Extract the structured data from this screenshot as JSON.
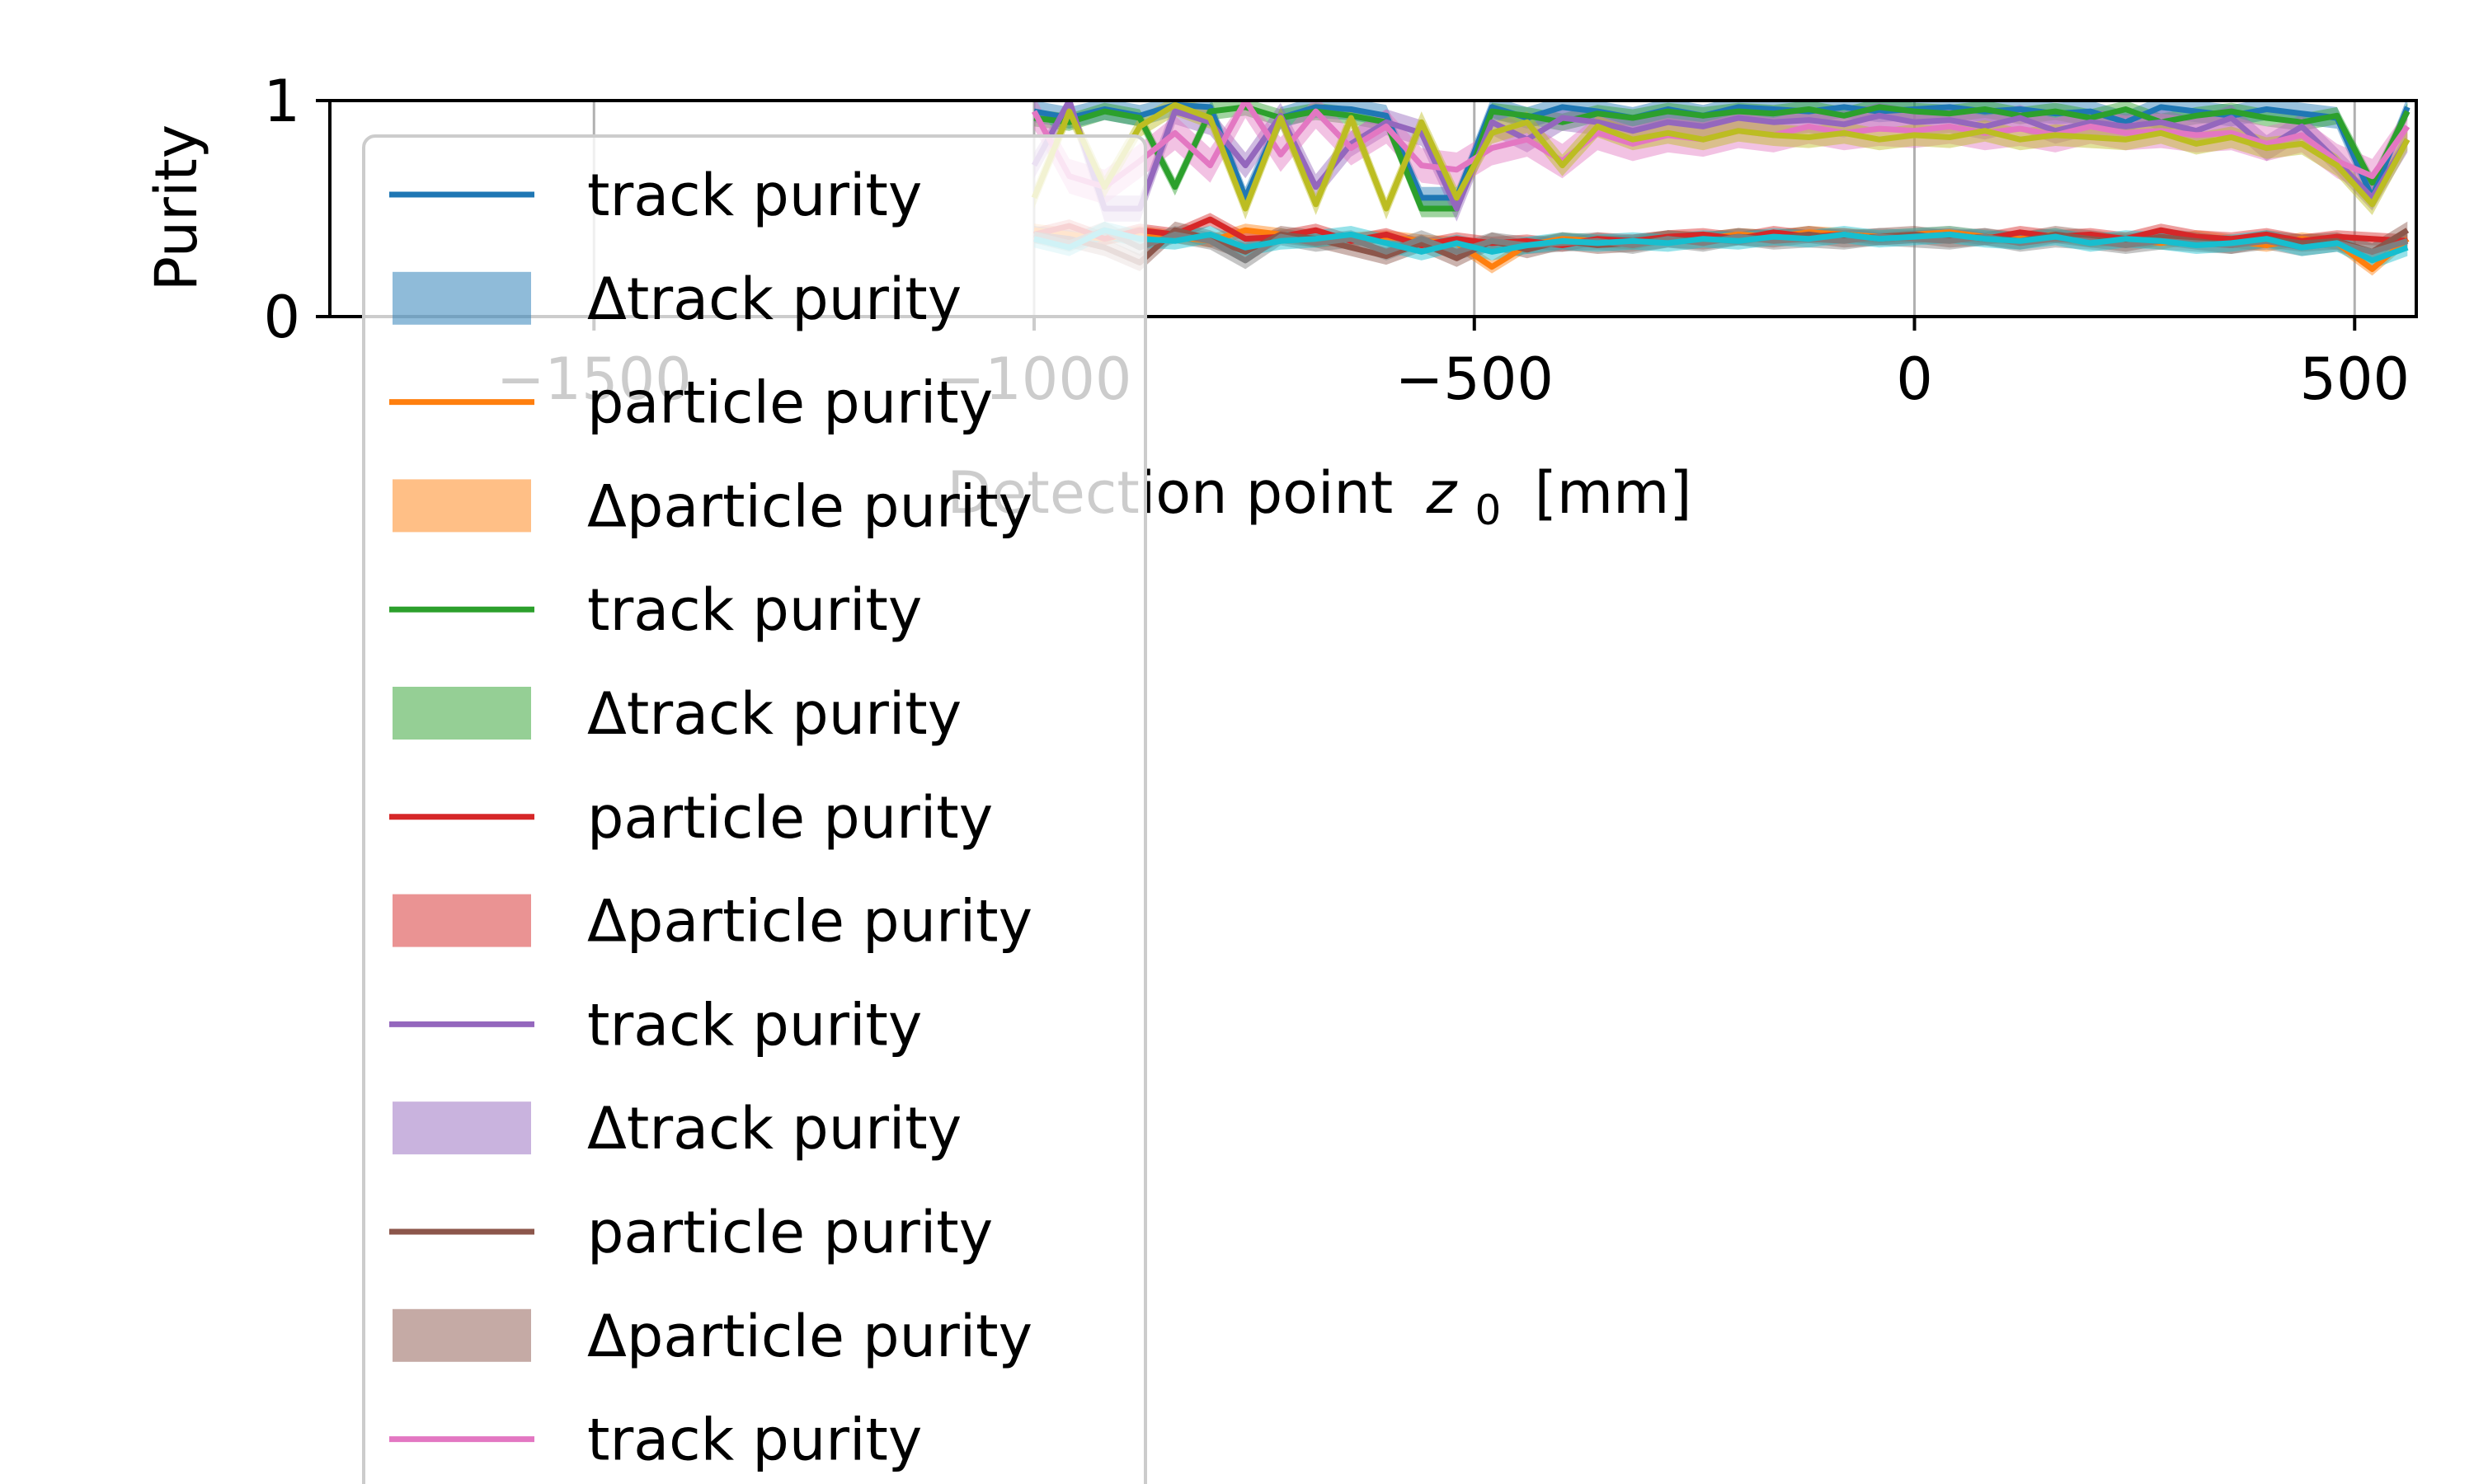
{
  "chart_data": {
    "type": "line",
    "title": "",
    "xlabel": "Detection point",
    "xlabel_var": "z",
    "xlabel_sub": "0",
    "xlabel_unit": "[mm]",
    "ylabel": "Purity",
    "xlim": [
      -1800,
      570
    ],
    "ylim": [
      0,
      1
    ],
    "x_ticks": [
      -1500,
      -1000,
      -500,
      0,
      500
    ],
    "x_tick_labels": [
      "−1500",
      "−1000",
      "−500",
      "0",
      "500"
    ],
    "y_ticks": [
      0,
      1
    ],
    "y_tick_labels": [
      "0",
      "1"
    ],
    "grid": "x",
    "legend_placement": "upper-left",
    "x": [
      -1000,
      -960,
      -920,
      -880,
      -840,
      -800,
      -760,
      -720,
      -680,
      -640,
      -600,
      -560,
      -520,
      -480,
      -440,
      -400,
      -360,
      -320,
      -280,
      -240,
      -200,
      -160,
      -120,
      -80,
      -40,
      0,
      40,
      80,
      120,
      160,
      200,
      240,
      280,
      320,
      360,
      400,
      440,
      480,
      520,
      560
    ],
    "series": [
      {
        "name": "track purity",
        "color": "#1f77b4",
        "band": 0.05,
        "values": [
          0.95,
          0.92,
          0.96,
          0.93,
          0.98,
          0.97,
          0.55,
          0.92,
          0.97,
          0.96,
          0.93,
          0.55,
          0.55,
          0.97,
          0.92,
          0.97,
          0.95,
          0.92,
          0.96,
          0.93,
          0.97,
          0.96,
          0.95,
          0.97,
          0.95,
          0.96,
          0.97,
          0.95,
          0.96,
          0.94,
          0.95,
          0.9,
          0.97,
          0.95,
          0.93,
          0.96,
          0.94,
          0.92,
          0.55,
          0.97
        ]
      },
      {
        "name": "particle purity",
        "color": "#ff7f0e",
        "band": 0.03,
        "values": [
          0.4,
          0.38,
          0.36,
          0.39,
          0.37,
          0.35,
          0.4,
          0.38,
          0.35,
          0.36,
          0.37,
          0.35,
          0.34,
          0.23,
          0.33,
          0.36,
          0.35,
          0.34,
          0.37,
          0.36,
          0.38,
          0.37,
          0.39,
          0.38,
          0.37,
          0.38,
          0.39,
          0.37,
          0.36,
          0.38,
          0.35,
          0.36,
          0.34,
          0.37,
          0.35,
          0.33,
          0.36,
          0.34,
          0.22,
          0.36
        ]
      },
      {
        "name": "track purity",
        "color": "#2ca02c",
        "band": 0.04,
        "values": [
          0.92,
          0.9,
          0.95,
          0.92,
          0.6,
          0.95,
          0.97,
          0.92,
          0.95,
          0.93,
          0.9,
          0.5,
          0.5,
          0.95,
          0.93,
          0.9,
          0.94,
          0.92,
          0.95,
          0.93,
          0.95,
          0.94,
          0.96,
          0.93,
          0.97,
          0.95,
          0.94,
          0.96,
          0.93,
          0.95,
          0.92,
          0.96,
          0.9,
          0.93,
          0.95,
          0.92,
          0.9,
          0.93,
          0.62,
          0.95
        ]
      },
      {
        "name": "particle purity",
        "color": "#d62728",
        "band": 0.03,
        "values": [
          0.38,
          0.42,
          0.36,
          0.4,
          0.38,
          0.45,
          0.36,
          0.37,
          0.4,
          0.35,
          0.38,
          0.33,
          0.36,
          0.34,
          0.35,
          0.33,
          0.36,
          0.35,
          0.37,
          0.38,
          0.36,
          0.39,
          0.37,
          0.38,
          0.36,
          0.37,
          0.38,
          0.36,
          0.39,
          0.37,
          0.38,
          0.36,
          0.4,
          0.37,
          0.36,
          0.38,
          0.35,
          0.37,
          0.36,
          0.35
        ]
      },
      {
        "name": "track purity",
        "color": "#9467bd",
        "band": 0.06,
        "values": [
          0.7,
          1.0,
          0.5,
          0.5,
          0.95,
          0.9,
          0.7,
          0.93,
          0.6,
          0.8,
          0.9,
          0.85,
          0.5,
          0.9,
          0.82,
          0.92,
          0.9,
          0.86,
          0.9,
          0.88,
          0.92,
          0.9,
          0.91,
          0.89,
          0.93,
          0.9,
          0.91,
          0.88,
          0.92,
          0.86,
          0.9,
          0.88,
          0.9,
          0.86,
          0.92,
          0.78,
          0.88,
          0.72,
          0.55,
          0.82
        ]
      },
      {
        "name": "particle purity",
        "color": "#8c564b",
        "band": 0.04,
        "values": [
          0.38,
          0.36,
          0.32,
          0.25,
          0.4,
          0.36,
          0.3,
          0.38,
          0.36,
          0.32,
          0.28,
          0.34,
          0.27,
          0.35,
          0.31,
          0.35,
          0.33,
          0.34,
          0.36,
          0.35,
          0.37,
          0.36,
          0.38,
          0.36,
          0.37,
          0.38,
          0.36,
          0.37,
          0.35,
          0.38,
          0.36,
          0.34,
          0.37,
          0.35,
          0.33,
          0.36,
          0.34,
          0.35,
          0.3,
          0.4
        ]
      },
      {
        "name": "track purity",
        "color": "#e377c2",
        "band": 0.08,
        "values": [
          0.95,
          0.65,
          0.6,
          0.72,
          0.85,
          0.7,
          1.0,
          0.75,
          0.95,
          0.78,
          0.88,
          0.7,
          0.68,
          0.78,
          0.82,
          0.72,
          0.85,
          0.8,
          0.84,
          0.82,
          0.86,
          0.84,
          0.88,
          0.85,
          0.87,
          0.86,
          0.88,
          0.85,
          0.87,
          0.84,
          0.88,
          0.85,
          0.86,
          0.84,
          0.85,
          0.8,
          0.84,
          0.72,
          0.65,
          0.88
        ]
      },
      {
        "name": "particle purity",
        "color": "#7f7f7f",
        "band": 0.04,
        "values": [
          0.38,
          0.34,
          0.4,
          0.32,
          0.38,
          0.35,
          0.26,
          0.37,
          0.34,
          0.36,
          0.3,
          0.36,
          0.3,
          0.35,
          0.33,
          0.34,
          0.35,
          0.33,
          0.36,
          0.34,
          0.37,
          0.35,
          0.36,
          0.35,
          0.37,
          0.36,
          0.35,
          0.37,
          0.34,
          0.36,
          0.35,
          0.33,
          0.35,
          0.34,
          0.33,
          0.35,
          0.32,
          0.34,
          0.3,
          0.35
        ]
      },
      {
        "name": "track purity",
        "color": "#bcbd22",
        "band": 0.05,
        "values": [
          0.55,
          0.95,
          0.6,
          0.88,
          0.98,
          0.92,
          0.5,
          0.92,
          0.52,
          0.92,
          0.5,
          0.9,
          0.55,
          0.85,
          0.9,
          0.7,
          0.88,
          0.82,
          0.85,
          0.82,
          0.86,
          0.84,
          0.83,
          0.85,
          0.82,
          0.84,
          0.83,
          0.86,
          0.82,
          0.84,
          0.83,
          0.82,
          0.85,
          0.8,
          0.83,
          0.78,
          0.8,
          0.7,
          0.52,
          0.82
        ]
      },
      {
        "name": "particle purity",
        "color": "#17becf",
        "band": 0.04,
        "values": [
          0.36,
          0.32,
          0.4,
          0.36,
          0.35,
          0.38,
          0.32,
          0.35,
          0.36,
          0.38,
          0.34,
          0.3,
          0.34,
          0.3,
          0.33,
          0.35,
          0.34,
          0.35,
          0.34,
          0.36,
          0.35,
          0.37,
          0.36,
          0.38,
          0.36,
          0.37,
          0.38,
          0.36,
          0.35,
          0.37,
          0.34,
          0.36,
          0.35,
          0.33,
          0.34,
          0.36,
          0.32,
          0.34,
          0.26,
          0.32
        ]
      }
    ],
    "legend": [
      {
        "kind": "line",
        "color": "#1f77b4",
        "label": "track purity"
      },
      {
        "kind": "band",
        "color": "#1f77b4",
        "label": "Δtrack purity"
      },
      {
        "kind": "line",
        "color": "#ff7f0e",
        "label": "particle purity"
      },
      {
        "kind": "band",
        "color": "#ff7f0e",
        "label": "Δparticle purity"
      },
      {
        "kind": "line",
        "color": "#2ca02c",
        "label": "track purity"
      },
      {
        "kind": "band",
        "color": "#2ca02c",
        "label": "Δtrack purity"
      },
      {
        "kind": "line",
        "color": "#d62728",
        "label": "particle purity"
      },
      {
        "kind": "band",
        "color": "#d62728",
        "label": "Δparticle purity"
      },
      {
        "kind": "line",
        "color": "#9467bd",
        "label": "track purity"
      },
      {
        "kind": "band",
        "color": "#9467bd",
        "label": "Δtrack purity"
      },
      {
        "kind": "line",
        "color": "#8c564b",
        "label": "particle purity"
      },
      {
        "kind": "band",
        "color": "#8c564b",
        "label": "Δparticle purity"
      },
      {
        "kind": "line",
        "color": "#e377c2",
        "label": "track purity"
      }
    ]
  }
}
